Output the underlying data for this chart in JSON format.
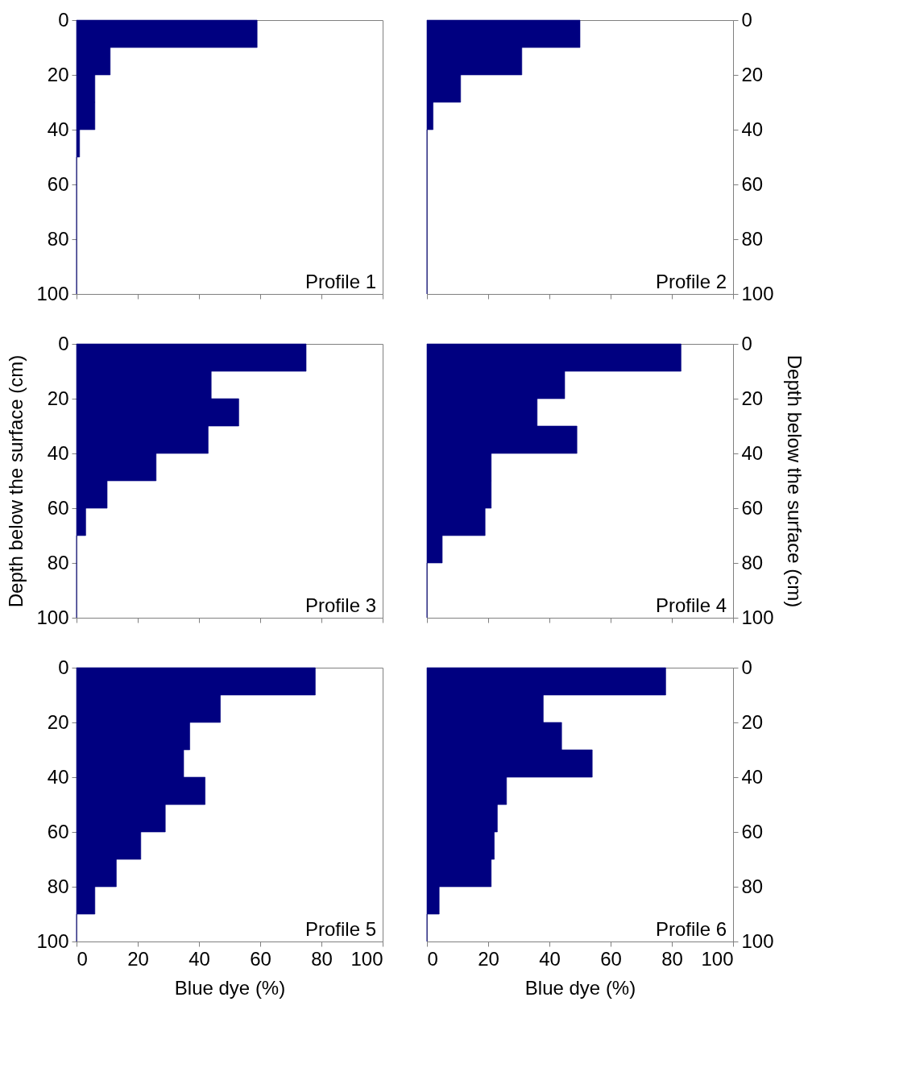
{
  "chart_data": [
    {
      "type": "histogram",
      "orientation": "horizontal",
      "bins": [
        0,
        10,
        20,
        30,
        40,
        50,
        60,
        70,
        80,
        90,
        100
      ],
      "values": [
        59,
        11,
        6,
        6,
        1,
        0,
        0,
        0,
        0,
        0
      ],
      "color": "#000080",
      "xlim": [
        0,
        100
      ],
      "xticks": [
        0,
        20,
        40,
        60,
        80,
        100
      ],
      "ylim": [
        100,
        0
      ],
      "yticks": [
        0,
        20,
        40,
        60,
        80,
        100
      ],
      "tick_labels": "y",
      "annotations": [
        "Profile 1"
      ]
    },
    {
      "type": "histogram",
      "orientation": "horizontal",
      "bins": [
        0,
        10,
        20,
        30,
        40,
        50,
        60,
        70,
        80,
        90,
        100
      ],
      "values": [
        50,
        31,
        11,
        2,
        0,
        0,
        0,
        0,
        0,
        0
      ],
      "color": "#000080",
      "xlim": [
        0,
        100
      ],
      "xticks": [
        0,
        20,
        40,
        60,
        80,
        100
      ],
      "ylim": [
        100,
        0
      ],
      "yticks": [
        0,
        20,
        40,
        60,
        80,
        100
      ],
      "tick_labels": "y",
      "annotations": [
        "Profile 2"
      ]
    },
    {
      "type": "histogram",
      "orientation": "horizontal",
      "bins": [
        0,
        10,
        20,
        30,
        40,
        50,
        60,
        70,
        80,
        90,
        100
      ],
      "values": [
        75,
        44,
        53,
        43,
        26,
        10,
        3,
        0,
        0,
        0
      ],
      "color": "#000080",
      "xlim": [
        0,
        100
      ],
      "xticks": [
        0,
        20,
        40,
        60,
        80,
        100
      ],
      "ylim": [
        100,
        0
      ],
      "yticks": [
        0,
        20,
        40,
        60,
        80,
        100
      ],
      "tick_labels": "y",
      "ylabel": "Depth below the surface (cm)",
      "annotations": [
        "Profile 3"
      ]
    },
    {
      "type": "histogram",
      "orientation": "horizontal",
      "bins": [
        0,
        10,
        20,
        30,
        40,
        50,
        60,
        70,
        80,
        90,
        100
      ],
      "values": [
        83,
        45,
        36,
        49,
        21,
        21,
        19,
        5,
        0,
        0
      ],
      "color": "#000080",
      "xlim": [
        0,
        100
      ],
      "xticks": [
        0,
        20,
        40,
        60,
        80,
        100
      ],
      "ylim": [
        100,
        0
      ],
      "yticks": [
        0,
        20,
        40,
        60,
        80,
        100
      ],
      "tick_labels": "y",
      "ylabel": "Depth below the surface (cm)",
      "annotations": [
        "Profile 4"
      ]
    },
    {
      "type": "histogram",
      "orientation": "horizontal",
      "bins": [
        0,
        10,
        20,
        30,
        40,
        50,
        60,
        70,
        80,
        90,
        100
      ],
      "values": [
        78,
        47,
        37,
        35,
        42,
        29,
        21,
        13,
        6,
        0
      ],
      "color": "#000080",
      "xlim": [
        0,
        100
      ],
      "xticks": [
        0,
        20,
        40,
        60,
        80,
        100
      ],
      "ylim": [
        100,
        0
      ],
      "yticks": [
        0,
        20,
        40,
        60,
        80,
        100
      ],
      "xlabel": "Blue dye (%)",
      "annotations": [
        "Profile 5"
      ]
    },
    {
      "type": "histogram",
      "orientation": "horizontal",
      "bins": [
        0,
        10,
        20,
        30,
        40,
        50,
        60,
        70,
        80,
        90,
        100
      ],
      "values": [
        78,
        38,
        44,
        54,
        26,
        23,
        22,
        21,
        4,
        0
      ],
      "color": "#000080",
      "xlim": [
        0,
        100
      ],
      "xticks": [
        0,
        20,
        40,
        60,
        80,
        100
      ],
      "ylim": [
        100,
        0
      ],
      "yticks": [
        0,
        20,
        40,
        60,
        80,
        100
      ],
      "xlabel": "Blue dye (%)",
      "annotations": [
        "Profile 6"
      ]
    }
  ]
}
